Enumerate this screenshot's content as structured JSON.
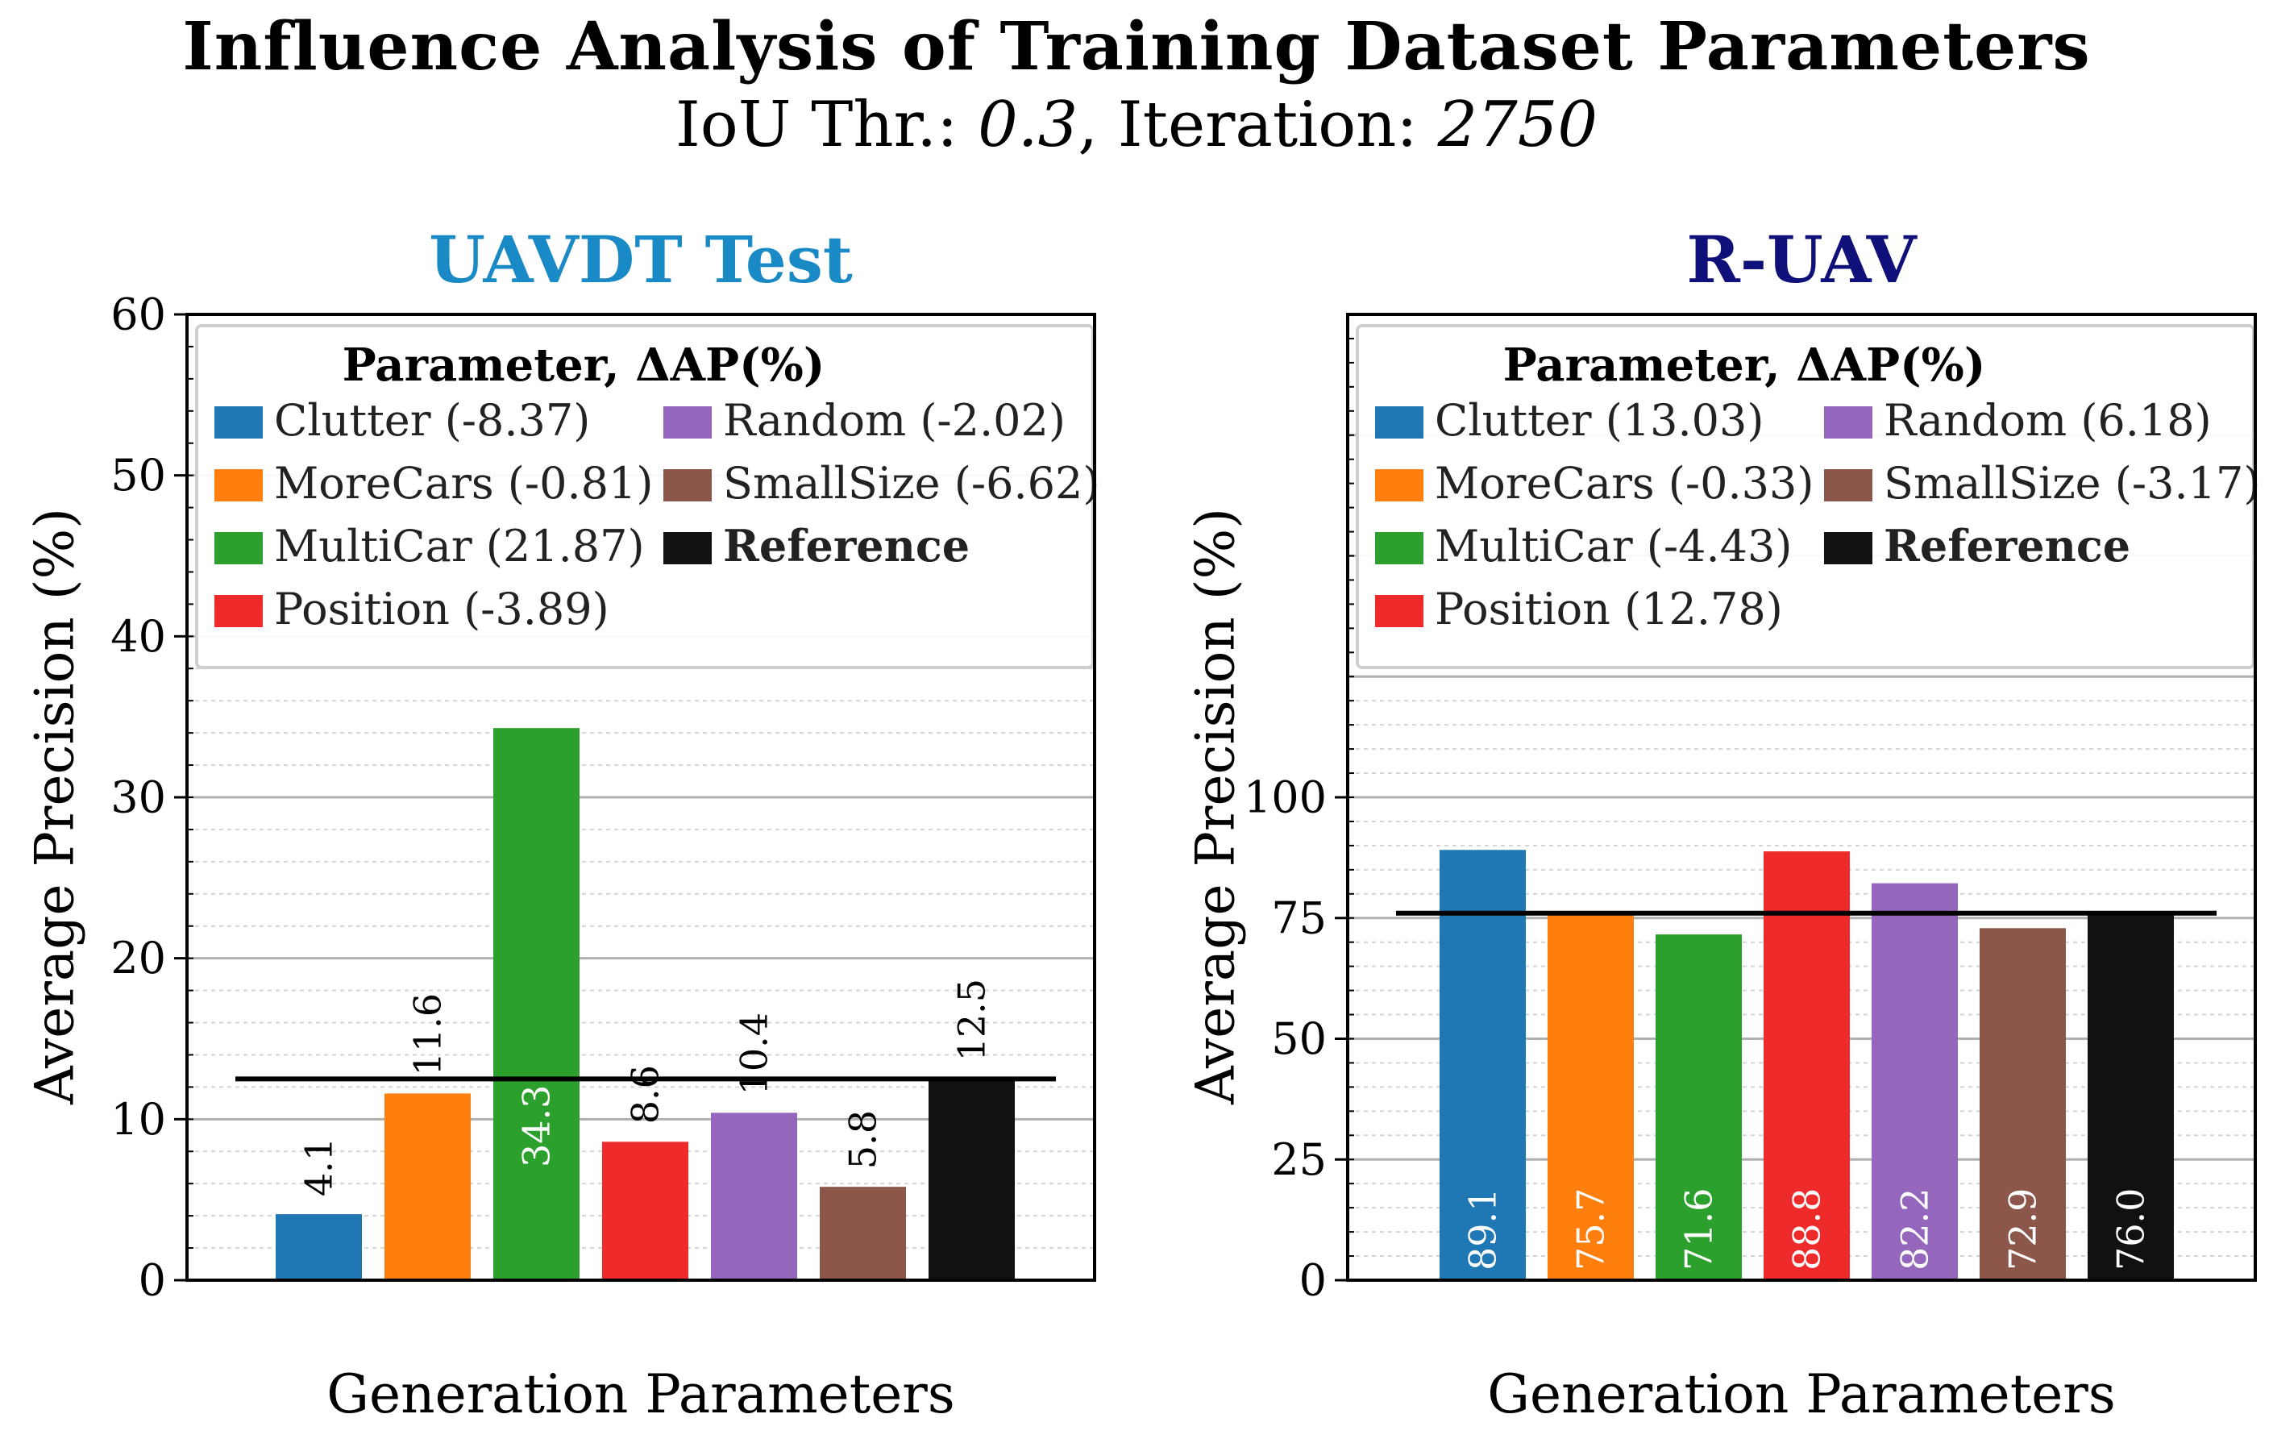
{
  "title": "Influence Analysis of Training Dataset Parameters",
  "subtitle": {
    "prefix": "IoU Thr.: ",
    "iou": "0.3",
    "middle": ", Iteration: ",
    "iteration": "2750"
  },
  "colors": {
    "Clutter": "#1f77b4",
    "MoreCars": "#ff7f0e",
    "MultiCar": "#2ca02c",
    "Position": "#ee2a2a",
    "Random": "#9467bd",
    "SmallSize": "#8c564b",
    "Reference": "#111111",
    "uavdt_title": "#1a8ac6",
    "ruav_title": "#10107a"
  },
  "chart_data": [
    {
      "type": "bar",
      "title": "UAVDT Test",
      "xlabel": "Generation Parameters",
      "ylabel": "Average Precision (%)",
      "ylim": [
        0,
        60
      ],
      "yticks": [
        0,
        10,
        20,
        30,
        40,
        50,
        60
      ],
      "grid": true,
      "categories": [
        "Clutter",
        "MoreCars",
        "MultiCar",
        "Position",
        "Random",
        "SmallSize",
        "Reference"
      ],
      "values": [
        4.1,
        11.6,
        34.3,
        8.6,
        10.4,
        5.8,
        12.5
      ],
      "value_labels": [
        "4.1",
        "11.6",
        "34.3",
        "8.6",
        "10.4",
        "5.8",
        "12.5"
      ],
      "reference_line": 12.5,
      "legend": {
        "title": "Parameter, ΔAP(%)",
        "placement": "top",
        "entries": [
          {
            "key": "Clutter",
            "label": "Clutter (-8.37)"
          },
          {
            "key": "Random",
            "label": "Random (-2.02)"
          },
          {
            "key": "MoreCars",
            "label": "MoreCars (-0.81)"
          },
          {
            "key": "SmallSize",
            "label": "SmallSize (-6.62)"
          },
          {
            "key": "MultiCar",
            "label": "MultiCar (21.87)"
          },
          {
            "key": "Reference",
            "label": "Reference"
          },
          {
            "key": "Position",
            "label": "Position (-3.89)"
          }
        ]
      }
    },
    {
      "type": "bar",
      "title": "R-UAV",
      "xlabel": "Generation Parameters",
      "ylabel": "Average Precision (%)",
      "ylim": [
        0,
        200
      ],
      "yticks": [
        0,
        25,
        50,
        75,
        100
      ],
      "grid": true,
      "categories": [
        "Clutter",
        "MoreCars",
        "MultiCar",
        "Position",
        "Random",
        "SmallSize",
        "Reference"
      ],
      "values": [
        89.1,
        75.7,
        71.6,
        88.8,
        82.2,
        72.9,
        76.0
      ],
      "value_labels": [
        "89.1",
        "75.7",
        "71.6",
        "88.8",
        "82.2",
        "72.9",
        "76.0"
      ],
      "reference_line": 76.0,
      "legend": {
        "title": "Parameter, ΔAP(%)",
        "placement": "top",
        "entries": [
          {
            "key": "Clutter",
            "label": "Clutter (13.03)"
          },
          {
            "key": "Random",
            "label": "Random (6.18)"
          },
          {
            "key": "MoreCars",
            "label": "MoreCars (-0.33)"
          },
          {
            "key": "SmallSize",
            "label": "SmallSize (-3.17)"
          },
          {
            "key": "MultiCar",
            "label": "MultiCar (-4.43)"
          },
          {
            "key": "Reference",
            "label": "Reference"
          },
          {
            "key": "Position",
            "label": "Position (12.78)"
          }
        ]
      }
    }
  ]
}
